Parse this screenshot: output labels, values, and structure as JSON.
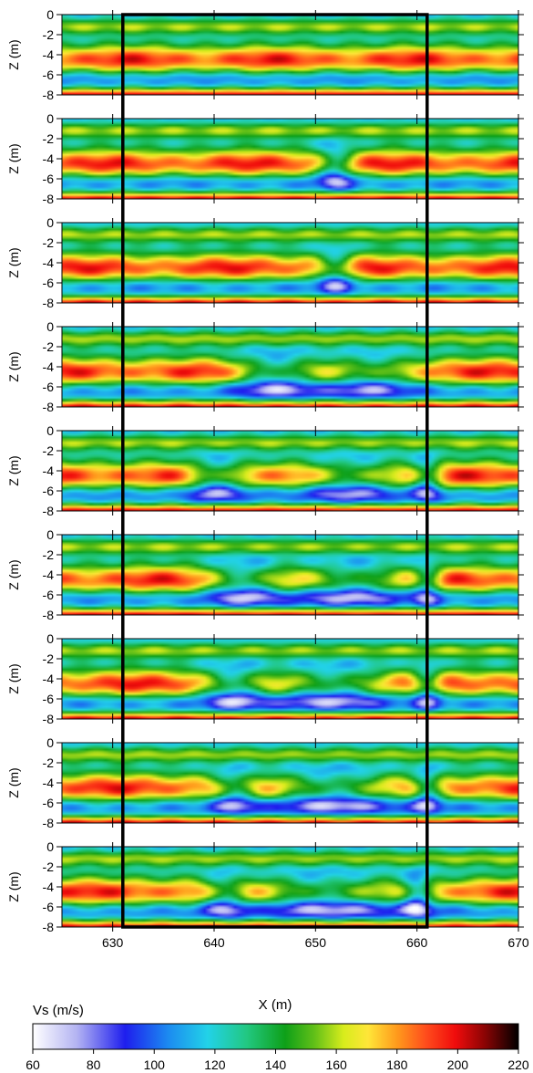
{
  "chart_data": {
    "type": "heatmap",
    "panel_count": 9,
    "xlabel": "X (m)",
    "ylabel": "Z (m)",
    "xlim": [
      625,
      670
    ],
    "ylim": [
      -8,
      0
    ],
    "x_ticks": [
      630,
      640,
      650,
      660,
      670
    ],
    "y_ticks": [
      0,
      -2,
      -4,
      -6,
      -8
    ],
    "highlight_box": {
      "x": [
        631,
        661
      ],
      "z": [
        -8,
        0
      ]
    },
    "colorbar": {
      "label": "Vs (m/s)",
      "min": 60,
      "max": 220,
      "ticks": [
        60,
        80,
        100,
        120,
        140,
        160,
        180,
        200,
        220
      ]
    },
    "panels": [
      {
        "index": 1,
        "disturbance": []
      },
      {
        "index": 2,
        "disturbance": [
          {
            "x": 652,
            "w": 2.5
          }
        ]
      },
      {
        "index": 3,
        "disturbance": [
          {
            "x": 652,
            "w": 2.5
          }
        ]
      },
      {
        "index": 4,
        "disturbance": [
          {
            "x": 646,
            "w": 6
          },
          {
            "x": 655,
            "w": 6
          }
        ]
      },
      {
        "index": 5,
        "disturbance": [
          {
            "x": 640,
            "w": 4
          },
          {
            "x": 653,
            "w": 6
          },
          {
            "x": 661,
            "w": 2
          }
        ]
      },
      {
        "index": 6,
        "disturbance": [
          {
            "x": 643,
            "w": 5
          },
          {
            "x": 653,
            "w": 8
          },
          {
            "x": 661,
            "w": 2
          }
        ]
      },
      {
        "index": 7,
        "disturbance": [
          {
            "x": 642,
            "w": 4
          },
          {
            "x": 651,
            "w": 9
          },
          {
            "x": 661,
            "w": 2
          }
        ]
      },
      {
        "index": 8,
        "disturbance": [
          {
            "x": 642,
            "w": 3
          },
          {
            "x": 652,
            "w": 10
          },
          {
            "x": 661,
            "w": 2
          }
        ]
      },
      {
        "index": 9,
        "disturbance": [
          {
            "x": 641,
            "w": 3
          },
          {
            "x": 652,
            "w": 11
          },
          {
            "x": 660,
            "w": 2
          }
        ]
      }
    ]
  }
}
